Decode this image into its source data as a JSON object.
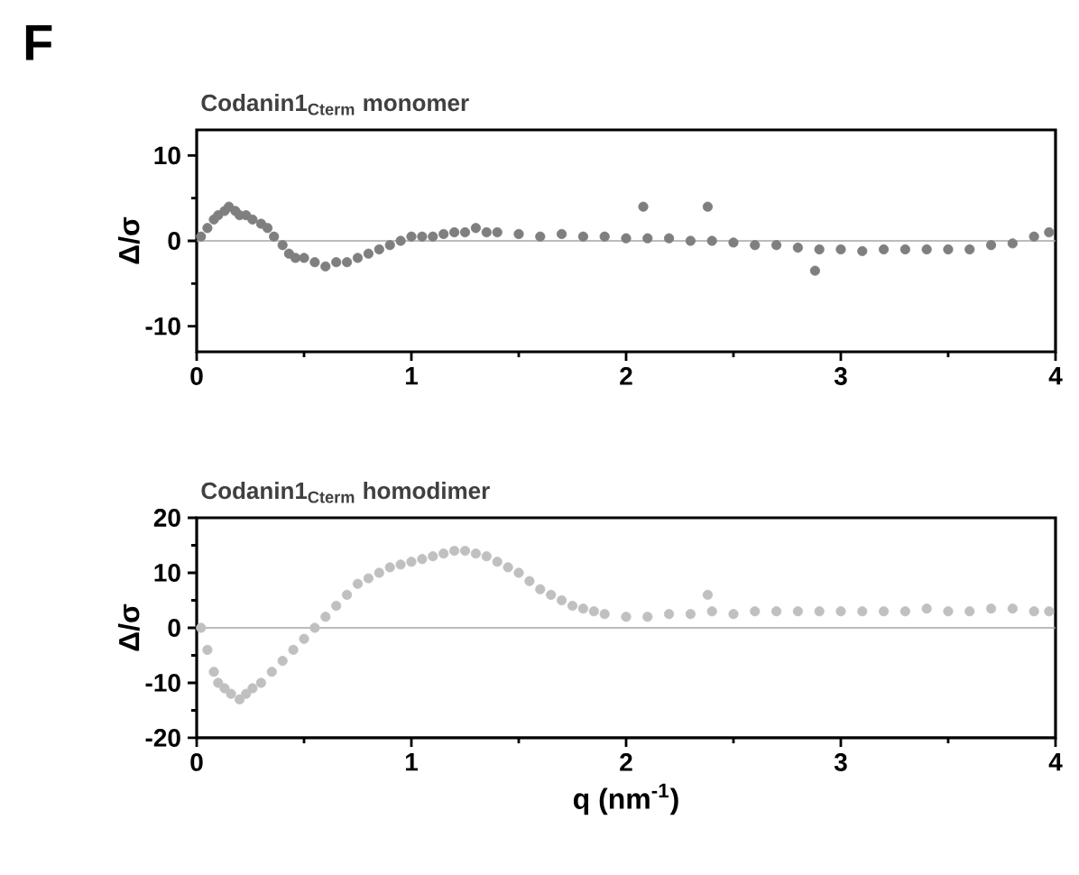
{
  "chart_data": [
    {
      "type": "scatter",
      "title": "Codanin1$_{Cterm}$ monomer",
      "ylabel": "Δ/σ",
      "annotations": [
        "F"
      ],
      "marker": "circle",
      "xlim": [
        0,
        4
      ],
      "ylim": [
        -13,
        13
      ],
      "xticks": [
        0,
        1,
        2,
        3,
        4
      ],
      "yticks": [
        -10,
        0,
        10
      ],
      "ref_lines": [
        {
          "axis": "y",
          "value": 0,
          "color": "#a6a6a6"
        }
      ],
      "series": [
        {
          "color": "#7f7f7f",
          "x": [
            0.02,
            0.05,
            0.08,
            0.1,
            0.13,
            0.15,
            0.18,
            0.2,
            0.23,
            0.26,
            0.3,
            0.33,
            0.36,
            0.4,
            0.43,
            0.46,
            0.5,
            0.55,
            0.6,
            0.65,
            0.7,
            0.75,
            0.8,
            0.85,
            0.9,
            0.95,
            1.0,
            1.05,
            1.1,
            1.15,
            1.2,
            1.25,
            1.3,
            1.35,
            1.4,
            1.5,
            1.6,
            1.7,
            1.8,
            1.9,
            2.0,
            2.08,
            2.1,
            2.2,
            2.3,
            2.38,
            2.4,
            2.5,
            2.6,
            2.7,
            2.8,
            2.88,
            2.9,
            3.0,
            3.1,
            3.2,
            3.3,
            3.4,
            3.5,
            3.6,
            3.7,
            3.8,
            3.9,
            3.97
          ],
          "values": [
            0.5,
            1.5,
            2.5,
            3.0,
            3.5,
            4.0,
            3.5,
            3.0,
            3.0,
            2.5,
            2.0,
            1.5,
            0.5,
            -0.5,
            -1.5,
            -2.0,
            -2.0,
            -2.5,
            -3.0,
            -2.5,
            -2.5,
            -2.0,
            -1.5,
            -1.0,
            -0.5,
            0.0,
            0.5,
            0.5,
            0.5,
            0.8,
            1.0,
            1.0,
            1.5,
            1.0,
            1.0,
            0.8,
            0.5,
            0.8,
            0.5,
            0.5,
            0.3,
            4.0,
            0.3,
            0.3,
            0.0,
            4.0,
            0.0,
            -0.2,
            -0.5,
            -0.5,
            -0.8,
            -3.5,
            -1.0,
            -1.0,
            -1.2,
            -1.0,
            -1.0,
            -1.0,
            -1.0,
            -1.0,
            -0.5,
            -0.3,
            0.5,
            1.0
          ]
        }
      ]
    },
    {
      "type": "scatter",
      "title": "Codanin1$_{Cterm}$ homodimer",
      "ylabel": "Δ/σ",
      "xlabel": "q (nm$^{-1}$)",
      "marker": "circle",
      "xlim": [
        0,
        4
      ],
      "ylim": [
        -20,
        20
      ],
      "xticks": [
        0,
        1,
        2,
        3,
        4
      ],
      "yticks": [
        -20,
        -10,
        0,
        10,
        20
      ],
      "ref_lines": [
        {
          "axis": "y",
          "value": 0,
          "color": "#a6a6a6"
        }
      ],
      "series": [
        {
          "color": "#c0c0c0",
          "x": [
            0.02,
            0.05,
            0.08,
            0.1,
            0.13,
            0.16,
            0.2,
            0.23,
            0.26,
            0.3,
            0.35,
            0.4,
            0.45,
            0.5,
            0.55,
            0.6,
            0.65,
            0.7,
            0.75,
            0.8,
            0.85,
            0.9,
            0.95,
            1.0,
            1.05,
            1.1,
            1.15,
            1.2,
            1.25,
            1.3,
            1.35,
            1.4,
            1.45,
            1.5,
            1.55,
            1.6,
            1.65,
            1.7,
            1.75,
            1.8,
            1.85,
            1.9,
            2.0,
            2.1,
            2.2,
            2.3,
            2.38,
            2.4,
            2.5,
            2.6,
            2.7,
            2.8,
            2.9,
            3.0,
            3.1,
            3.2,
            3.3,
            3.4,
            3.5,
            3.6,
            3.7,
            3.8,
            3.9,
            3.97
          ],
          "values": [
            0,
            -4,
            -8,
            -10,
            -11,
            -12,
            -13,
            -12,
            -11,
            -10,
            -8,
            -6,
            -4,
            -2,
            0,
            2,
            4,
            6,
            8,
            9,
            10,
            11,
            11.5,
            12,
            12.5,
            13,
            13.5,
            14,
            14,
            13.5,
            13,
            12,
            11,
            10,
            8.5,
            7,
            6,
            5,
            4,
            3.5,
            3,
            2.5,
            2,
            2,
            2.5,
            2.5,
            6,
            3,
            2.5,
            3,
            3,
            3,
            3,
            3,
            3,
            3,
            3,
            3.5,
            3,
            3,
            3.5,
            3.5,
            3,
            3
          ]
        }
      ]
    }
  ]
}
